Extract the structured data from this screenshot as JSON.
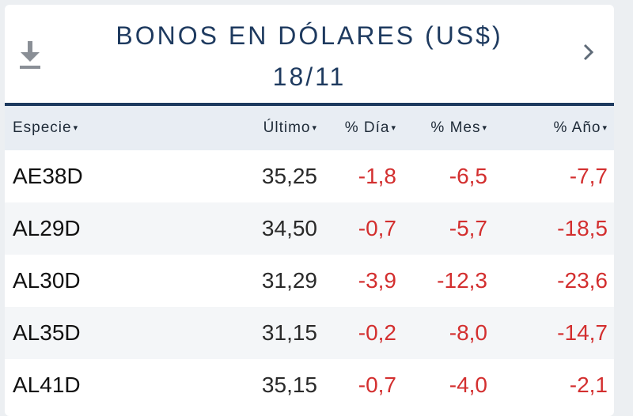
{
  "header": {
    "title": "BONOS EN DÓLARES (US$)",
    "date": "18/11"
  },
  "icons": {
    "download": "download-icon",
    "next": "chevron-right-icon"
  },
  "columns": {
    "especie": "Especie",
    "ultimo": "Último",
    "dia": "% Día",
    "mes": "% Mes",
    "ano": "% Año",
    "sort_caret": "▾"
  },
  "rows": [
    {
      "especie": "AE38D",
      "ultimo": "35,25",
      "dia": "-1,8",
      "mes": "-6,5",
      "ano": "-7,7"
    },
    {
      "especie": "AL29D",
      "ultimo": "34,50",
      "dia": "-0,7",
      "mes": "-5,7",
      "ano": "-18,5"
    },
    {
      "especie": "AL30D",
      "ultimo": "31,29",
      "dia": "-3,9",
      "mes": "-12,3",
      "ano": "-23,6"
    },
    {
      "especie": "AL35D",
      "ultimo": "31,15",
      "dia": "-0,2",
      "mes": "-8,0",
      "ano": "-14,7"
    },
    {
      "especie": "AL41D",
      "ultimo": "35,15",
      "dia": "-0,7",
      "mes": "-4,0",
      "ano": "-2,1"
    }
  ],
  "colors": {
    "title": "#1e3a5f",
    "negative": "#d32f2f",
    "header_bg": "#e8edf3"
  }
}
